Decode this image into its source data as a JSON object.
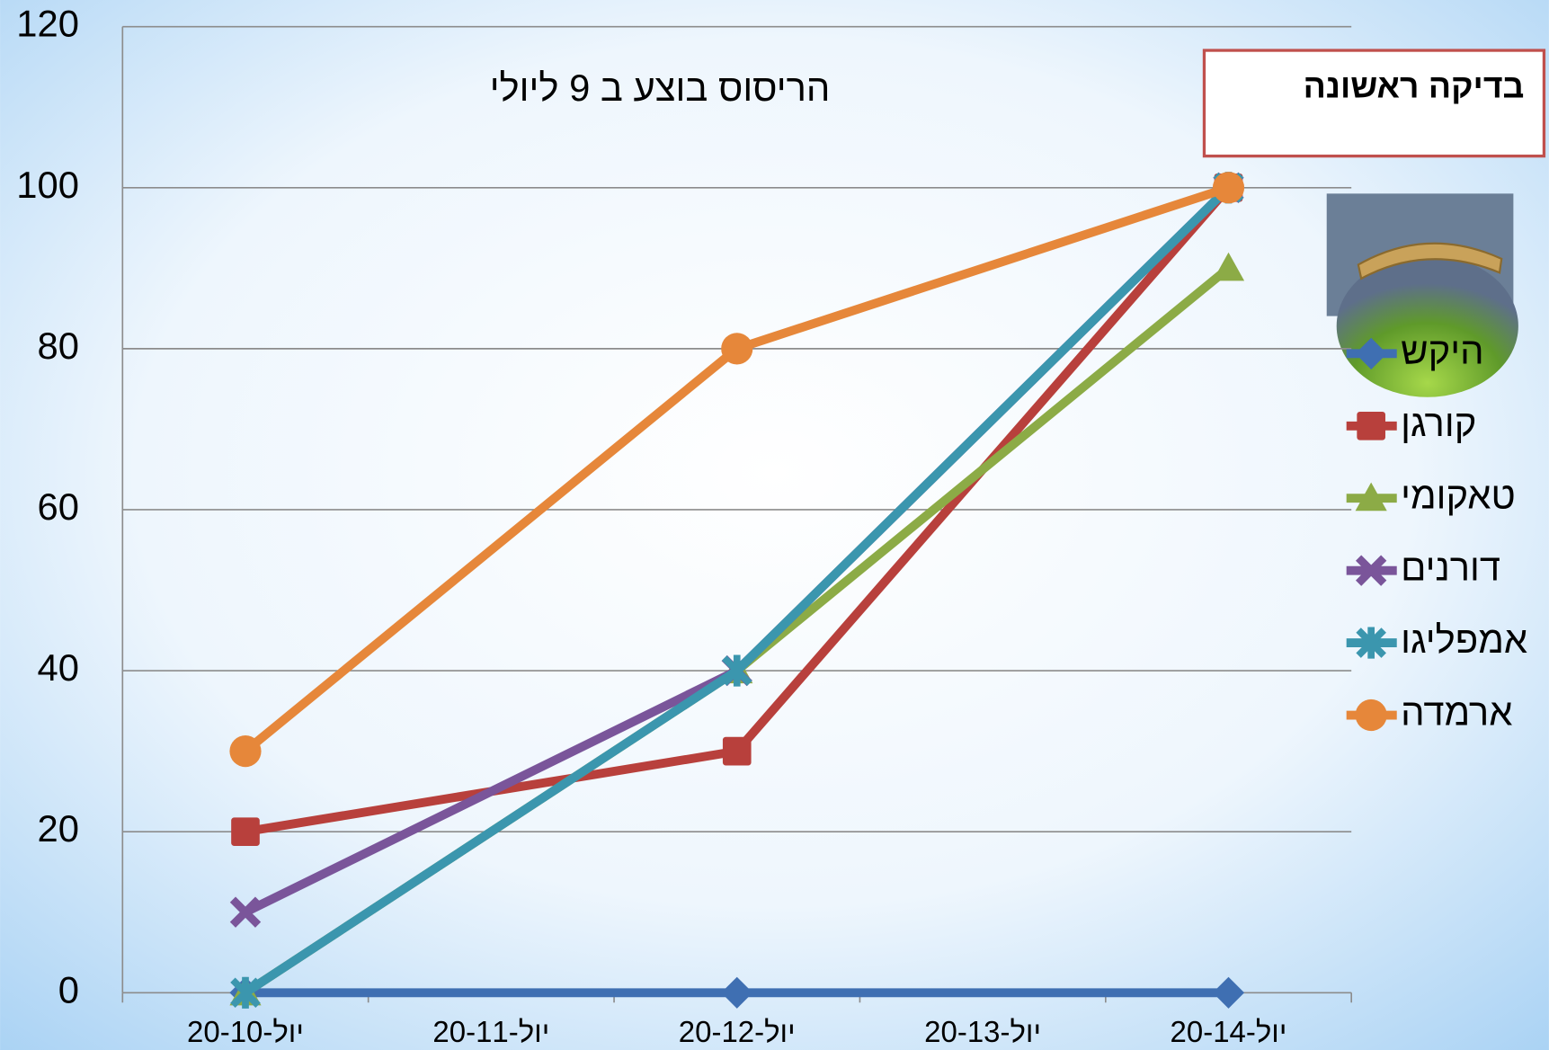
{
  "chart_data": {
    "type": "line",
    "title": "הריסוס בוצע ב 9 ליולי",
    "annotation": "בדיקה ראשונה",
    "categories": [
      "20-יול-10",
      "20-יול-11",
      "20-יול-12",
      "20-יול-13",
      "20-יול-14"
    ],
    "span_gaps": true,
    "series": [
      {
        "name": "היקש",
        "color": "#3f6fb2",
        "marker": "diamond",
        "values": [
          0,
          null,
          0,
          null,
          0
        ]
      },
      {
        "name": "קורגן",
        "color": "#b8403c",
        "marker": "square",
        "values": [
          20,
          null,
          30,
          null,
          100
        ]
      },
      {
        "name": "טאקומי",
        "color": "#8cab46",
        "marker": "triangle",
        "values": [
          0,
          null,
          40,
          null,
          90
        ]
      },
      {
        "name": "דורנים",
        "color": "#7a559a",
        "marker": "x",
        "values": [
          10,
          null,
          40,
          null,
          100
        ]
      },
      {
        "name": "אמפליגו",
        "color": "#3b96ae",
        "marker": "star",
        "values": [
          0,
          null,
          40,
          null,
          100
        ]
      },
      {
        "name": "ארמדה",
        "color": "#e6873a",
        "marker": "circle",
        "values": [
          30,
          null,
          80,
          null,
          100
        ]
      }
    ],
    "ylim": [
      0,
      120
    ],
    "yticks": [
      0,
      20,
      40,
      60,
      80,
      100,
      120
    ],
    "grid": true,
    "legend": "right"
  }
}
